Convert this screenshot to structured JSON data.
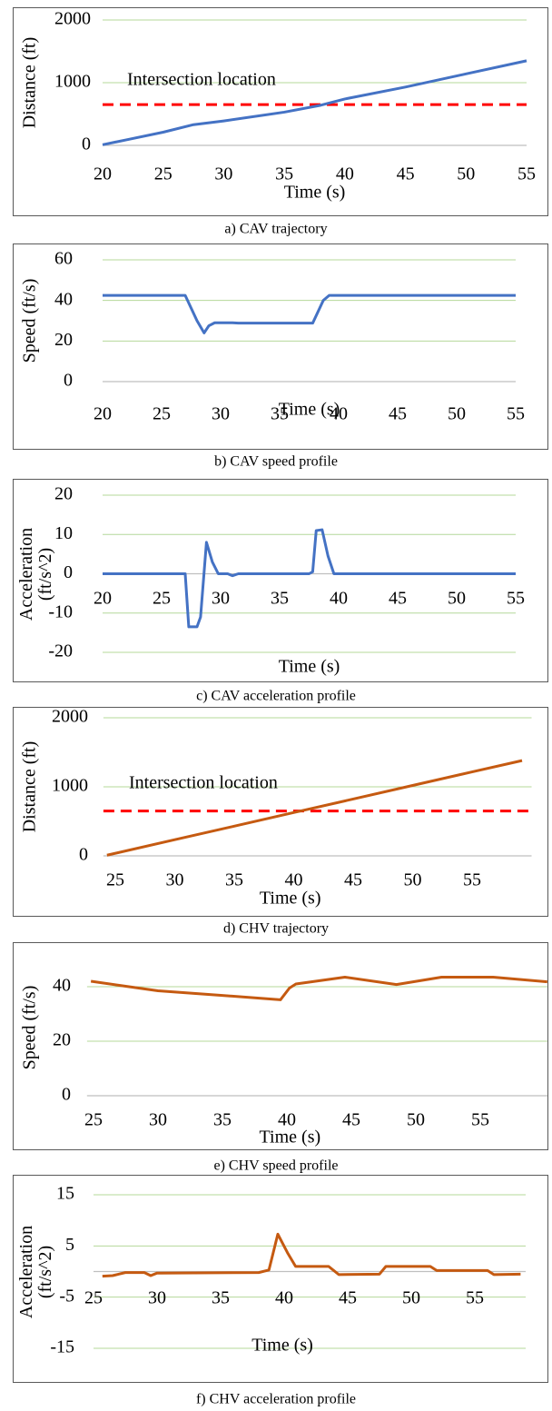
{
  "chart_data": [
    {
      "type": "line",
      "caption": "a) CAV trajectory",
      "xlabel": "Time (s)",
      "ylabel": "Distance (ft)",
      "x": [
        20,
        22,
        25,
        27.5,
        30,
        35,
        38,
        40,
        45,
        50,
        55
      ],
      "values": [
        10,
        90,
        210,
        330,
        390,
        530,
        640,
        740,
        930,
        1140,
        1350
      ],
      "color": "#4472c4",
      "xlim": [
        20,
        55
      ],
      "xticks": [
        20,
        25,
        30,
        35,
        40,
        45,
        50,
        55
      ],
      "ylim": [
        0,
        2000
      ],
      "yticks": [
        0,
        1000,
        2000
      ],
      "grid": true,
      "reference_line": {
        "value": 650,
        "color": "#ff0000",
        "label": "Intersection location"
      }
    },
    {
      "type": "line",
      "caption": "b) CAV speed profile",
      "xlabel": "Time (s)",
      "ylabel": "Speed (ft/s)",
      "x": [
        20,
        27,
        28,
        28.6,
        29,
        29.5,
        31,
        31.5,
        37.8,
        38.7,
        39.2,
        55
      ],
      "values": [
        42.5,
        42.5,
        30,
        24,
        27.5,
        29,
        29,
        28.8,
        28.8,
        40,
        42.5,
        42.5
      ],
      "color": "#4472c4",
      "xlim": [
        20,
        55
      ],
      "xticks": [
        20,
        25,
        30,
        35,
        40,
        45,
        50,
        55
      ],
      "ylim": [
        0,
        60
      ],
      "yticks": [
        0,
        20,
        40,
        60
      ],
      "grid": true
    },
    {
      "type": "line",
      "caption": "c) CAV acceleration profile",
      "xlabel": "Time (s)",
      "ylabel": "Acceleration (ft/s^2)",
      "x": [
        20,
        27,
        27.3,
        28,
        28.3,
        28.8,
        29.3,
        29.8,
        30.6,
        31,
        31.5,
        37.5,
        37.8,
        38.1,
        38.6,
        39.1,
        39.6,
        55
      ],
      "values": [
        0,
        0,
        -13.5,
        -13.5,
        -11,
        8,
        3,
        0,
        0,
        -0.5,
        0,
        0,
        0.5,
        11,
        11.2,
        4.5,
        0,
        0
      ],
      "color": "#4472c4",
      "xlim": [
        20,
        55
      ],
      "xticks": [
        20,
        25,
        30,
        35,
        40,
        45,
        50,
        55
      ],
      "ylim": [
        -20,
        20
      ],
      "yticks": [
        -20,
        -10,
        0,
        10,
        20
      ],
      "grid": true
    },
    {
      "type": "line",
      "caption": "d) CHV trajectory",
      "xlabel": "Time (s)",
      "ylabel": "Distance (ft)",
      "x": [
        24.3,
        30,
        35,
        40,
        45,
        50,
        55,
        59.2
      ],
      "values": [
        10,
        234,
        430,
        627,
        823,
        1020,
        1216,
        1380
      ],
      "color": "#c55a11",
      "xlim": [
        24,
        60
      ],
      "xticks": [
        25,
        30,
        35,
        40,
        45,
        50,
        55
      ],
      "ylim": [
        0,
        2000
      ],
      "yticks": [
        0,
        1000,
        2000
      ],
      "grid": true,
      "reference_line": {
        "value": 650,
        "color": "#ff0000",
        "label": "Intersection location"
      }
    },
    {
      "type": "line",
      "caption": "e) CHV speed profile",
      "xlabel": "Time (s)",
      "ylabel": "Speed (ft/s)",
      "x": [
        24.8,
        27,
        30,
        35,
        39.5,
        40.2,
        40.7,
        44.5,
        48.5,
        52,
        56,
        60.2
      ],
      "values": [
        42,
        40.5,
        38.5,
        36.8,
        35.2,
        39.5,
        41,
        43.5,
        40.8,
        43.5,
        43.5,
        41.8
      ],
      "color": "#c55a11",
      "xlim": [
        24.5,
        60.2
      ],
      "xticks": [
        25,
        30,
        35,
        40,
        45,
        50,
        55
      ],
      "ylim": [
        0,
        50
      ],
      "yticks": [
        0,
        20,
        40
      ],
      "grid": true
    },
    {
      "type": "line",
      "caption": "f) CHV acceleration profile",
      "xlabel": "Time (s)",
      "ylabel": "Acceleration (ft/s^2)",
      "x": [
        25.7,
        26.5,
        27,
        27.5,
        29,
        29.5,
        30,
        38,
        38.8,
        39.5,
        40.3,
        40.9,
        43.5,
        44.3,
        47.5,
        48,
        51.5,
        52,
        56,
        56.5,
        58.6
      ],
      "values": [
        -0.9,
        -0.8,
        -0.5,
        -0.2,
        -0.2,
        -0.8,
        -0.3,
        -0.2,
        0.3,
        7.3,
        3.5,
        1,
        1,
        -0.6,
        -0.5,
        1,
        1,
        0.2,
        0.2,
        -0.6,
        -0.5
      ],
      "color": "#c55a11",
      "xlim": [
        25,
        59
      ],
      "xticks": [
        25,
        30,
        35,
        40,
        45,
        50,
        55
      ],
      "ylim": [
        -15,
        15
      ],
      "yticks": [
        -15,
        -5,
        5,
        15
      ],
      "grid": true
    }
  ]
}
